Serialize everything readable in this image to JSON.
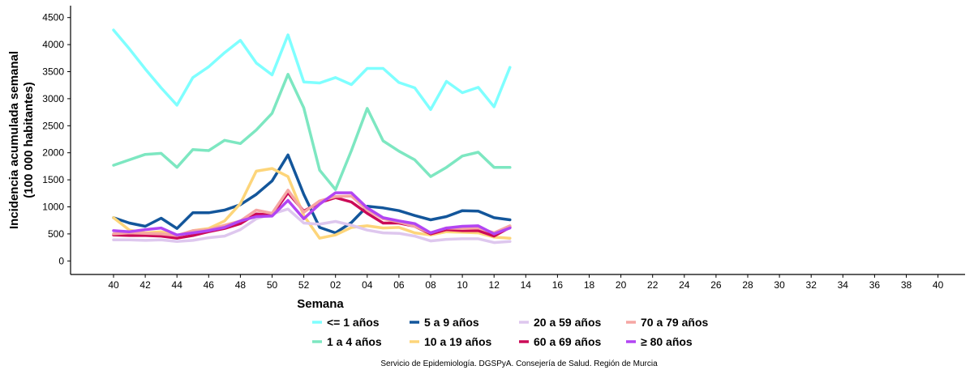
{
  "chart_data": {
    "type": "line",
    "x": [
      "40",
      "41",
      "42",
      "43",
      "44",
      "45",
      "46",
      "47",
      "48",
      "49",
      "50",
      "51",
      "52",
      "01",
      "02",
      "03",
      "04",
      "05",
      "06",
      "07",
      "08",
      "09",
      "10",
      "11",
      "12",
      "13"
    ],
    "x_ticks": [
      "40",
      "42",
      "44",
      "46",
      "48",
      "50",
      "52",
      "02",
      "04",
      "06",
      "08",
      "10",
      "12",
      "14",
      "16",
      "18",
      "20",
      "22",
      "24",
      "26",
      "28",
      "30",
      "32",
      "34",
      "36",
      "38",
      "40"
    ],
    "y_ticks": [
      0,
      500,
      1000,
      1500,
      2000,
      2500,
      3000,
      3500,
      4000,
      4500
    ],
    "ylim": [
      -250,
      4720
    ],
    "xlabel": "Semana",
    "ylabel_line1": "Incidencia acumulada semanal",
    "ylabel_line2": "(100 000 habitantes)",
    "legend_position": "bottom",
    "grid": false,
    "series": [
      {
        "name": "<= 1 años",
        "color": "#7FFFFF",
        "values": [
          4270,
          3920,
          3550,
          3200,
          2880,
          3390,
          3590,
          3850,
          4080,
          3660,
          3440,
          4180,
          3310,
          3290,
          3390,
          3260,
          3560,
          3560,
          3300,
          3200,
          2800,
          3320,
          3110,
          3210,
          2850,
          3580
        ]
      },
      {
        "name": "1 a 4 años",
        "color": "#7DE7C1",
        "values": [
          1770,
          1870,
          1970,
          1990,
          1730,
          2060,
          2040,
          2230,
          2170,
          2420,
          2730,
          3450,
          2830,
          1680,
          1320,
          2040,
          2820,
          2220,
          2030,
          1870,
          1560,
          1730,
          1940,
          2010,
          1730,
          1730
        ]
      },
      {
        "name": "5 a 9 años",
        "color": "#13569B",
        "values": [
          800,
          700,
          640,
          790,
          600,
          890,
          890,
          940,
          1040,
          1230,
          1480,
          1960,
          1230,
          620,
          520,
          710,
          1010,
          980,
          930,
          840,
          760,
          820,
          930,
          920,
          800,
          760
        ]
      },
      {
        "name": "10 a 19 años",
        "color": "#FDD57A",
        "values": [
          800,
          570,
          520,
          540,
          470,
          560,
          600,
          740,
          1060,
          1660,
          1710,
          1560,
          840,
          420,
          480,
          620,
          650,
          610,
          620,
          520,
          480,
          540,
          530,
          520,
          440,
          420
        ]
      },
      {
        "name": "20 a 59 años",
        "color": "#DEC7EE",
        "values": [
          390,
          390,
          380,
          390,
          360,
          380,
          430,
          460,
          580,
          780,
          870,
          960,
          700,
          680,
          730,
          660,
          570,
          520,
          510,
          460,
          370,
          400,
          410,
          410,
          340,
          360
        ]
      },
      {
        "name": "60 a 69 años",
        "color": "#CB0A57",
        "values": [
          480,
          470,
          470,
          460,
          420,
          470,
          540,
          600,
          690,
          870,
          850,
          1260,
          920,
          1080,
          1170,
          1090,
          880,
          700,
          700,
          640,
          500,
          580,
          560,
          560,
          460,
          620
        ]
      },
      {
        "name": "70 a 79 años",
        "color": "#F5A6A3",
        "values": [
          500,
          520,
          510,
          500,
          470,
          560,
          580,
          660,
          740,
          940,
          880,
          1310,
          900,
          1110,
          1190,
          1200,
          940,
          780,
          720,
          640,
          520,
          610,
          600,
          610,
          520,
          650
        ]
      },
      {
        "name": "≥ 80 años",
        "color": "#B245F3",
        "values": [
          560,
          540,
          580,
          610,
          480,
          520,
          560,
          620,
          740,
          820,
          830,
          1120,
          780,
          1050,
          1260,
          1260,
          980,
          800,
          740,
          690,
          520,
          610,
          640,
          650,
          500,
          610
        ]
      }
    ]
  },
  "footer": {
    "source": "Servicio de Epidemiología. DGSPyA. Consejería de Salud. Región de Murcia"
  }
}
